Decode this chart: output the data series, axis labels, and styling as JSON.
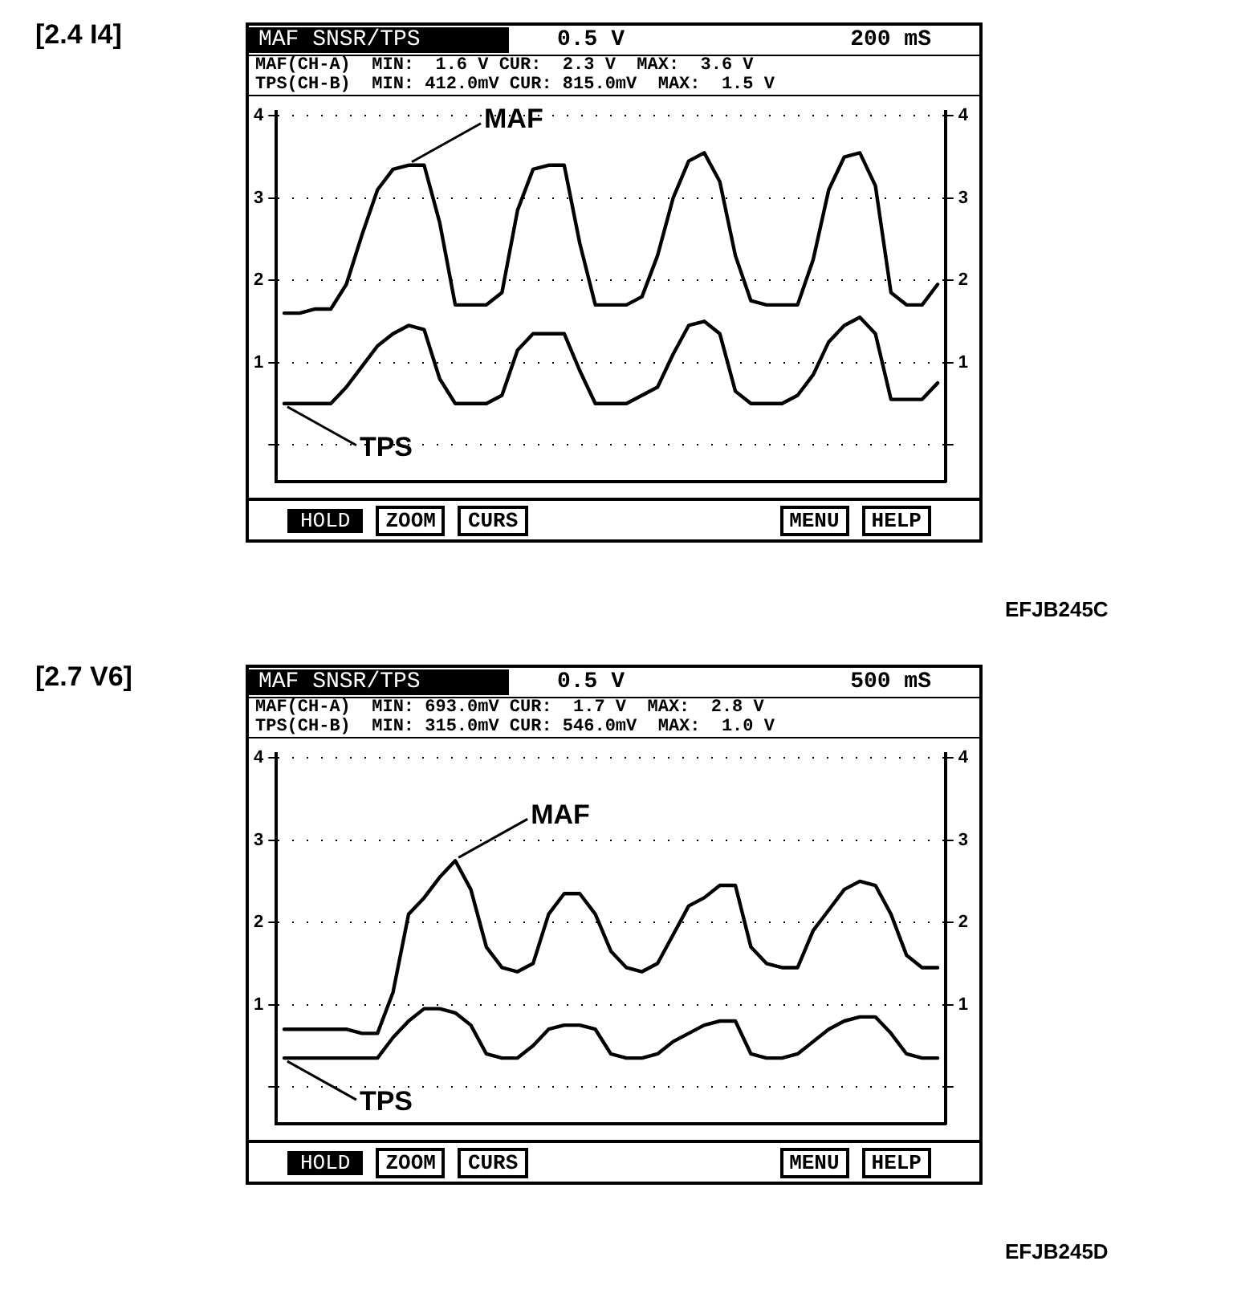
{
  "chart_data": [
    {
      "type": "line",
      "title": "[2.4 I4]",
      "categories": [
        null,
        null,
        null,
        null,
        null,
        null,
        null,
        null,
        null,
        null,
        null,
        null,
        null,
        null,
        null,
        null,
        null,
        null,
        null,
        null,
        null,
        null,
        null,
        null,
        null,
        null,
        null,
        null,
        null,
        null,
        null,
        null,
        null,
        null,
        null,
        null,
        null,
        null,
        null,
        null,
        null,
        null,
        null
      ],
      "series": [
        {
          "name": "MAF",
          "color": "#000000",
          "values": [
            1.6,
            1.6,
            1.65,
            1.65,
            1.95,
            2.55,
            3.1,
            3.35,
            3.4,
            3.4,
            2.7,
            1.7,
            1.7,
            1.7,
            1.85,
            2.85,
            3.35,
            3.4,
            3.4,
            2.45,
            1.7,
            1.7,
            1.7,
            1.8,
            2.3,
            3.0,
            3.45,
            3.55,
            3.2,
            2.3,
            1.75,
            1.7,
            1.7,
            1.7,
            2.25,
            3.1,
            3.5,
            3.55,
            3.15,
            1.85,
            1.7,
            1.7,
            1.95
          ]
        },
        {
          "name": "TPS",
          "color": "#000000",
          "values": [
            0.5,
            0.5,
            0.5,
            0.5,
            0.7,
            0.95,
            1.2,
            1.35,
            1.45,
            1.4,
            0.8,
            0.5,
            0.5,
            0.5,
            0.6,
            1.15,
            1.35,
            1.35,
            1.35,
            0.9,
            0.5,
            0.5,
            0.5,
            0.6,
            0.7,
            1.1,
            1.45,
            1.5,
            1.35,
            0.65,
            0.5,
            0.5,
            0.5,
            0.6,
            0.85,
            1.25,
            1.45,
            1.55,
            1.35,
            0.55,
            0.55,
            0.55,
            0.75
          ]
        }
      ],
      "ylim": [
        -0.45,
        4.05
      ],
      "yticks": [
        {
          "value": 0,
          "label": null
        },
        1,
        2,
        3,
        4
      ],
      "y2lim": [
        -0.45,
        4.05
      ],
      "y2ticks": [
        {
          "value": 0,
          "label": null
        },
        1,
        2,
        3,
        4
      ],
      "tick_labels": "y",
      "grid": "y",
      "marker": "none",
      "line_style": "solid",
      "annotations": [
        "MAF SNSR/TPS",
        "0.5 V",
        "200 mS",
        "MAF(CH-A)  MIN:  1.6 V CUR:  2.3 V  MAX:  3.6 V",
        "TPS(CH-B)  MIN: 412.0mV CUR: 815.0mV  MAX:  1.5 V",
        "HOLD",
        "ZOOM",
        "CURS",
        "MENU",
        "HELP",
        "EFJB245C"
      ]
    },
    {
      "type": "line",
      "title": "[2.7 V6]",
      "categories": [
        null,
        null,
        null,
        null,
        null,
        null,
        null,
        null,
        null,
        null,
        null,
        null,
        null,
        null,
        null,
        null,
        null,
        null,
        null,
        null,
        null,
        null,
        null,
        null,
        null,
        null,
        null,
        null,
        null,
        null,
        null,
        null,
        null,
        null,
        null,
        null,
        null,
        null,
        null,
        null,
        null,
        null,
        null
      ],
      "series": [
        {
          "name": "MAF",
          "color": "#000000",
          "values": [
            0.7,
            0.7,
            0.7,
            0.7,
            0.7,
            0.65,
            0.65,
            1.15,
            2.1,
            2.3,
            2.55,
            2.75,
            2.4,
            1.7,
            1.45,
            1.4,
            1.5,
            2.1,
            2.35,
            2.35,
            2.1,
            1.65,
            1.45,
            1.4,
            1.5,
            1.85,
            2.2,
            2.3,
            2.45,
            2.45,
            1.7,
            1.5,
            1.45,
            1.45,
            1.9,
            2.15,
            2.4,
            2.5,
            2.45,
            2.1,
            1.6,
            1.45,
            1.45
          ]
        },
        {
          "name": "TPS",
          "color": "#000000",
          "values": [
            0.35,
            0.35,
            0.35,
            0.35,
            0.35,
            0.35,
            0.35,
            0.6,
            0.8,
            0.95,
            0.95,
            0.9,
            0.75,
            0.4,
            0.35,
            0.35,
            0.5,
            0.7,
            0.75,
            0.75,
            0.7,
            0.4,
            0.35,
            0.35,
            0.4,
            0.55,
            0.65,
            0.75,
            0.8,
            0.8,
            0.4,
            0.35,
            0.35,
            0.4,
            0.55,
            0.7,
            0.8,
            0.85,
            0.85,
            0.65,
            0.4,
            0.35,
            0.35
          ]
        }
      ],
      "ylim": [
        -0.45,
        4.05
      ],
      "yticks": [
        {
          "value": 0,
          "label": null
        },
        1,
        2,
        3,
        4
      ],
      "y2lim": [
        -0.45,
        4.05
      ],
      "y2ticks": [
        {
          "value": 0,
          "label": null
        },
        1,
        2,
        3,
        4
      ],
      "tick_labels": "y",
      "grid": "y",
      "marker": "none",
      "line_style": "solid",
      "annotations": [
        "MAF SNSR/TPS",
        "0.5 V",
        "500 mS",
        "MAF(CH-A)  MIN: 693.0mV CUR:  1.7 V  MAX:  2.8 V",
        "TPS(CH-B)  MIN: 315.0mV CUR: 546.0mV  MAX:  1.0 V",
        "HOLD",
        "ZOOM",
        "CURS",
        "MENU",
        "HELP",
        "EFJB245D"
      ]
    }
  ]
}
